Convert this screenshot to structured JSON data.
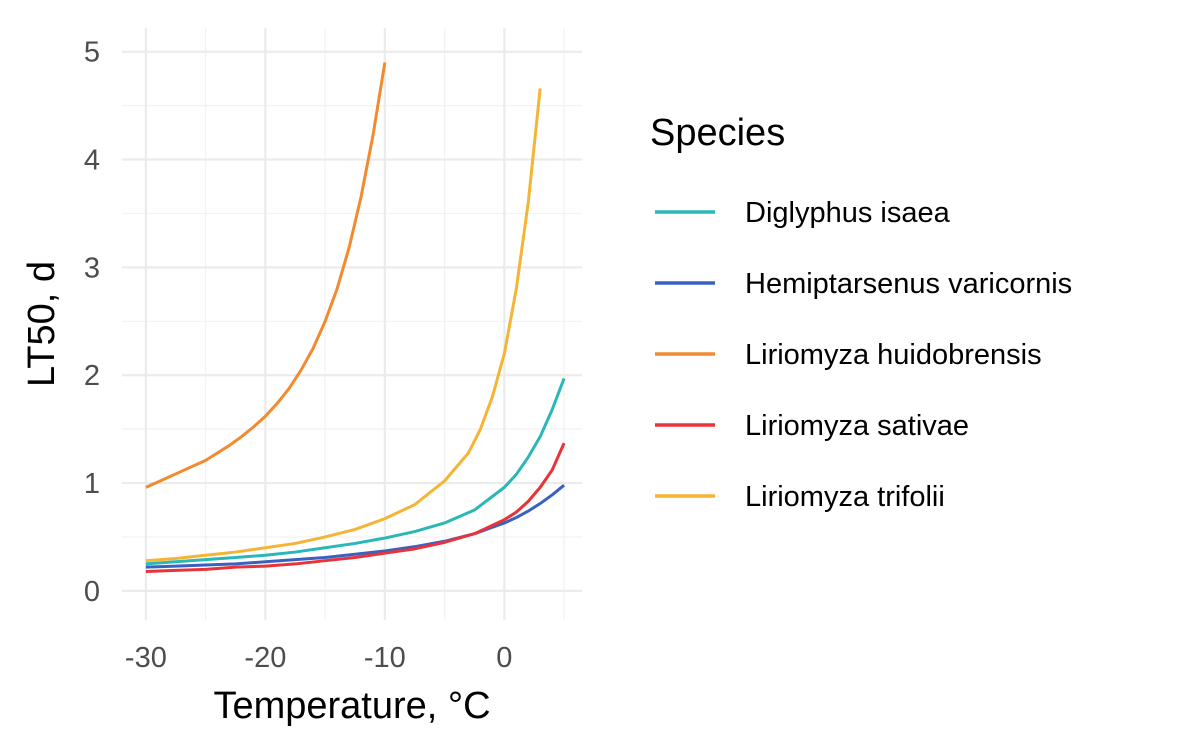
{
  "chart_data": {
    "type": "line",
    "title": "",
    "xlabel": "Temperature, °C",
    "ylabel": "LT50, d",
    "xlim": [
      -32,
      6.5
    ],
    "ylim": [
      -0.27,
      5.22
    ],
    "xticks": [
      -30,
      -20,
      -10,
      0
    ],
    "xtick_labels": [
      "-30",
      "-20",
      "-10",
      "0"
    ],
    "xminor": [
      -25,
      -15,
      -5,
      5
    ],
    "yticks": [
      0,
      1,
      2,
      3,
      4,
      5
    ],
    "ytick_labels": [
      "0",
      "1",
      "2",
      "3",
      "4",
      "5"
    ],
    "yminor": [
      0.5,
      1.5,
      2.5,
      3.5,
      4.5
    ],
    "grid": true,
    "legend_title": "Species",
    "legend_position": "right",
    "series": [
      {
        "name": "Diglyphus isaea",
        "color": "#2ab7b7",
        "x": [
          -30,
          -27.5,
          -25,
          -22.5,
          -20,
          -17.5,
          -15,
          -12.5,
          -10,
          -7.5,
          -5,
          -2.5,
          0,
          1,
          2,
          3,
          4,
          5
        ],
        "y": [
          0.25,
          0.27,
          0.29,
          0.31,
          0.33,
          0.36,
          0.4,
          0.44,
          0.49,
          0.55,
          0.63,
          0.75,
          0.96,
          1.08,
          1.24,
          1.43,
          1.68,
          1.97
        ]
      },
      {
        "name": "Hemiptarsenus varicornis",
        "color": "#3a61c0",
        "x": [
          -30,
          -27.5,
          -25,
          -22.5,
          -20,
          -17.5,
          -15,
          -12.5,
          -10,
          -7.5,
          -5,
          -2.5,
          0,
          1,
          2,
          3,
          4,
          5
        ],
        "y": [
          0.22,
          0.23,
          0.24,
          0.25,
          0.27,
          0.29,
          0.31,
          0.34,
          0.37,
          0.41,
          0.46,
          0.53,
          0.63,
          0.68,
          0.74,
          0.81,
          0.89,
          0.98
        ]
      },
      {
        "name": "Liriomyza huidobrensis",
        "color": "#f28b30",
        "x": [
          -30,
          -29,
          -28,
          -27,
          -26,
          -25,
          -24,
          -23,
          -22,
          -21,
          -20,
          -19,
          -18,
          -17,
          -16,
          -15,
          -14,
          -13,
          -12,
          -11,
          -10
        ],
        "y": [
          0.96,
          1.01,
          1.06,
          1.11,
          1.16,
          1.21,
          1.28,
          1.35,
          1.43,
          1.52,
          1.62,
          1.74,
          1.88,
          2.05,
          2.25,
          2.5,
          2.8,
          3.18,
          3.65,
          4.22,
          4.9
        ]
      },
      {
        "name": "Liriomyza sativae",
        "color": "#e8333a",
        "x": [
          -30,
          -27.5,
          -25,
          -22.5,
          -20,
          -17.5,
          -15,
          -12.5,
          -10,
          -7.5,
          -5,
          -2.5,
          0,
          1,
          2,
          3,
          4,
          5
        ],
        "y": [
          0.18,
          0.19,
          0.2,
          0.22,
          0.23,
          0.25,
          0.28,
          0.31,
          0.35,
          0.39,
          0.45,
          0.53,
          0.66,
          0.73,
          0.83,
          0.96,
          1.12,
          1.37
        ]
      },
      {
        "name": "Liriomyza trifolii",
        "color": "#f5b434",
        "x": [
          -30,
          -27.5,
          -25,
          -22.5,
          -20,
          -17.5,
          -15,
          -12.5,
          -10,
          -7.5,
          -5,
          -3,
          -2,
          -1,
          0,
          1,
          2,
          3
        ],
        "y": [
          0.28,
          0.3,
          0.33,
          0.36,
          0.4,
          0.44,
          0.5,
          0.57,
          0.67,
          0.8,
          1.02,
          1.28,
          1.5,
          1.8,
          2.2,
          2.8,
          3.6,
          4.66
        ]
      }
    ]
  }
}
